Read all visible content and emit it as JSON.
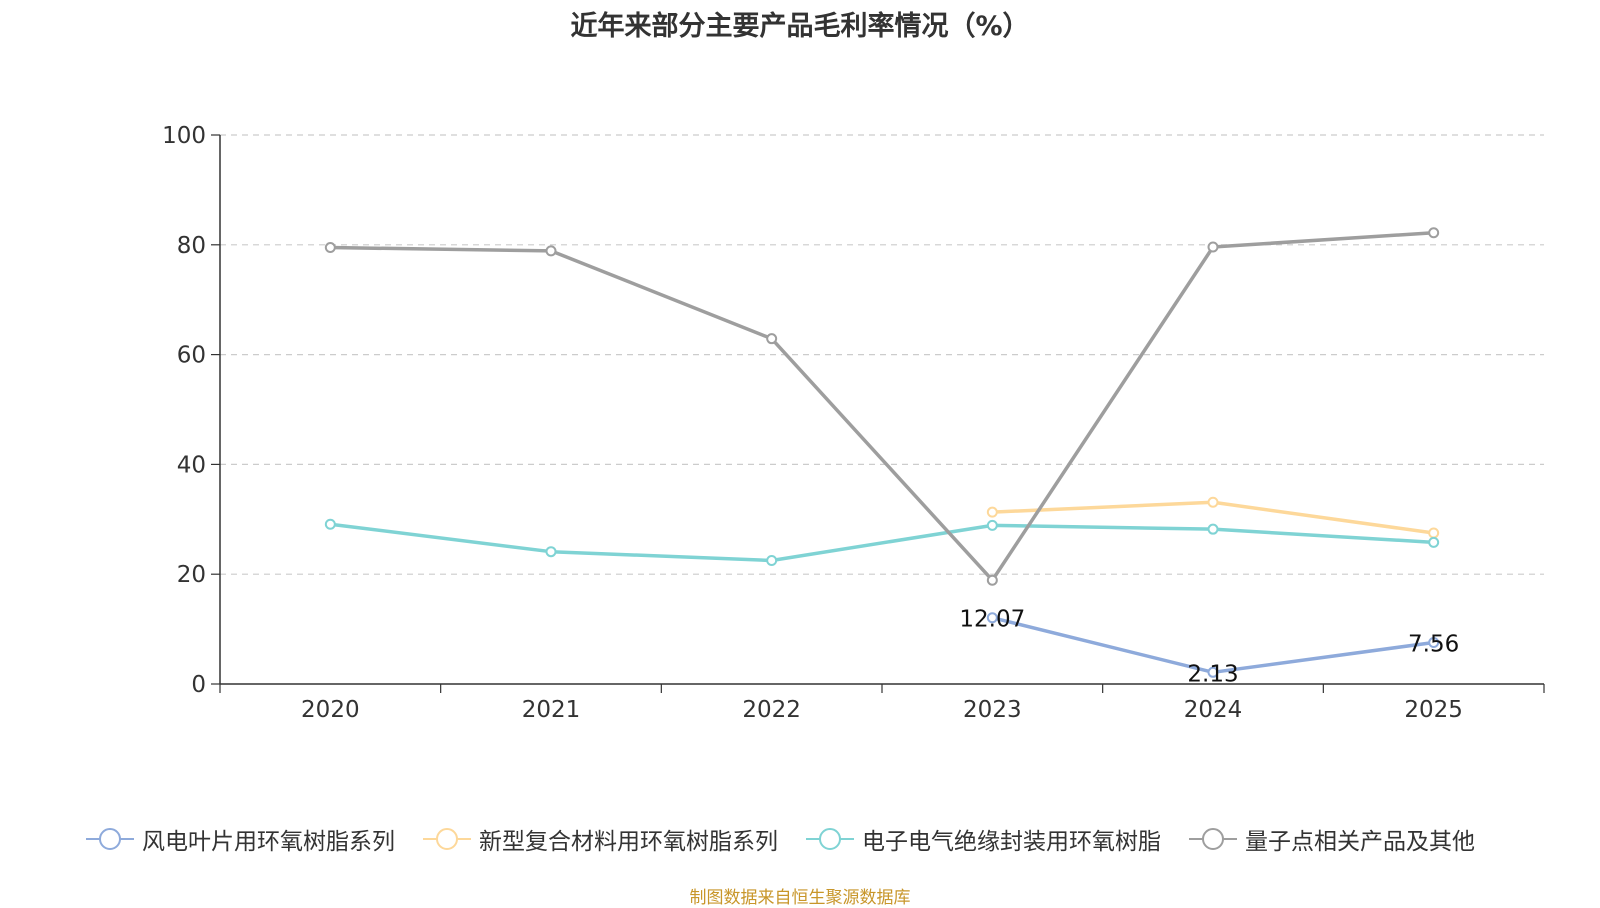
{
  "title": "近年来部分主要产品毛利率情况（%）",
  "source": "制图数据来自恒生聚源数据库",
  "chart_data": {
    "type": "line",
    "title": "近年来部分主要产品毛利率情况（%）",
    "categories": [
      "2020",
      "2021",
      "2022",
      "2023",
      "2024",
      "2025"
    ],
    "ylim": [
      0,
      100
    ],
    "yticks": [
      0,
      20,
      40,
      60,
      80,
      100
    ],
    "grid": true,
    "legend_position": "bottom",
    "series": [
      {
        "name": "风电叶片用环氧树脂系列",
        "color": "#8eaadb",
        "values": [
          null,
          null,
          null,
          12.07,
          2.13,
          7.56
        ],
        "show_labels": true
      },
      {
        "name": "新型复合材料用环氧树脂系列",
        "color": "#fdd89a",
        "values": [
          null,
          null,
          null,
          31.3,
          33.1,
          27.5
        ],
        "show_labels": false
      },
      {
        "name": "电子电气绝缘封装用环氧树脂",
        "color": "#7fd3d4",
        "values": [
          29.1,
          24.1,
          22.5,
          28.9,
          28.2,
          25.8
        ],
        "show_labels": false
      },
      {
        "name": "量子点相关产品及其他",
        "color": "#9e9e9e",
        "values": [
          79.5,
          78.9,
          62.9,
          18.9,
          79.6,
          82.2
        ],
        "show_labels": false
      }
    ]
  }
}
